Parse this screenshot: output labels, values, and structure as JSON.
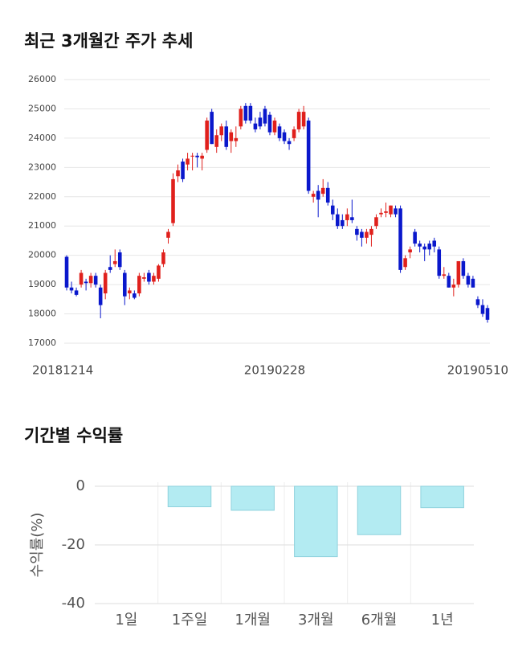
{
  "chart_data": [
    {
      "type": "candlestick",
      "title": "최근 3개월간 주가 추세",
      "up_color": "#e0201c",
      "down_color": "#0a18cc",
      "grid": true,
      "ylim": [
        17000,
        26000
      ],
      "yticks": [
        17000,
        18000,
        19000,
        20000,
        21000,
        22000,
        23000,
        24000,
        25000,
        26000
      ],
      "categories": [
        "20181214",
        null,
        null,
        null,
        null,
        null,
        null,
        null,
        null,
        null,
        null,
        null,
        null,
        null,
        null,
        null,
        null,
        null,
        null,
        null,
        null,
        null,
        null,
        null,
        null,
        null,
        null,
        null,
        null,
        null,
        null,
        null,
        null,
        null,
        null,
        null,
        null,
        null,
        null,
        null,
        null,
        null,
        null,
        "20190228",
        null,
        null,
        null,
        null,
        null,
        null,
        null,
        null,
        null,
        null,
        null,
        null,
        null,
        null,
        null,
        null,
        null,
        null,
        null,
        null,
        null,
        null,
        null,
        null,
        null,
        null,
        null,
        null,
        null,
        null,
        null,
        null,
        null,
        null,
        null,
        null,
        null,
        null,
        null,
        null,
        null,
        "20190510"
      ],
      "ohlc": [
        [
          19950,
          20000,
          18800,
          18900
        ],
        [
          18900,
          19100,
          18700,
          18800
        ],
        [
          18800,
          18900,
          18600,
          18650
        ],
        [
          19000,
          19500,
          18900,
          19400
        ],
        [
          19100,
          19200,
          18800,
          19050
        ],
        [
          19050,
          19400,
          18900,
          19300
        ],
        [
          19300,
          19400,
          18900,
          19000
        ],
        [
          18900,
          19000,
          17850,
          18300
        ],
        [
          18700,
          19500,
          18500,
          19400
        ],
        [
          19600,
          20000,
          19400,
          19500
        ],
        [
          19700,
          20200,
          19600,
          19800
        ],
        [
          20100,
          20200,
          19500,
          19600
        ],
        [
          19400,
          19500,
          18300,
          18600
        ],
        [
          18700,
          18900,
          18500,
          18800
        ],
        [
          18700,
          18800,
          18500,
          18550
        ],
        [
          18700,
          19400,
          18600,
          19300
        ],
        [
          19200,
          19400,
          19100,
          19250
        ],
        [
          19400,
          19500,
          19000,
          19100
        ],
        [
          19100,
          19400,
          19000,
          19300
        ],
        [
          19200,
          19700,
          19100,
          19650
        ],
        [
          19700,
          20200,
          19600,
          20100
        ],
        [
          20600,
          20900,
          20400,
          20800
        ],
        [
          21100,
          22800,
          21000,
          22600
        ],
        [
          22700,
          23100,
          22500,
          22900
        ],
        [
          23200,
          23300,
          22500,
          22600
        ],
        [
          23100,
          23500,
          22900,
          23300
        ],
        [
          23400,
          23500,
          22900,
          23400
        ],
        [
          23400,
          23500,
          23000,
          23350
        ],
        [
          23300,
          23500,
          22900,
          23400
        ],
        [
          23600,
          24700,
          23500,
          24600
        ],
        [
          24900,
          25000,
          23800,
          23800
        ],
        [
          23700,
          24300,
          23500,
          24100
        ],
        [
          24100,
          24500,
          23900,
          24400
        ],
        [
          24400,
          24600,
          23600,
          23700
        ],
        [
          23900,
          24300,
          23500,
          24200
        ],
        [
          23900,
          24400,
          23700,
          24000
        ],
        [
          24400,
          25100,
          24300,
          25000
        ],
        [
          25100,
          25200,
          24500,
          24600
        ],
        [
          25100,
          25200,
          24500,
          24600
        ],
        [
          24500,
          24700,
          24200,
          24300
        ],
        [
          24700,
          24900,
          24300,
          24400
        ],
        [
          25000,
          25100,
          24400,
          24500
        ],
        [
          24800,
          24900,
          24100,
          24200
        ],
        [
          24200,
          24700,
          24100,
          24600
        ],
        [
          24400,
          24500,
          23900,
          24000
        ],
        [
          24200,
          24300,
          23800,
          23900
        ],
        [
          23900,
          24000,
          23600,
          23800
        ],
        [
          24000,
          24400,
          23900,
          24300
        ],
        [
          24300,
          25000,
          24200,
          24900
        ],
        [
          24400,
          25100,
          24300,
          24900
        ],
        [
          24600,
          24700,
          22100,
          22200
        ],
        [
          22000,
          22200,
          21800,
          22100
        ],
        [
          22200,
          22400,
          21300,
          21900
        ],
        [
          22100,
          22600,
          22000,
          22300
        ],
        [
          22300,
          22500,
          21700,
          21800
        ],
        [
          21700,
          21900,
          21200,
          21400
        ],
        [
          21400,
          21600,
          20900,
          21000
        ],
        [
          21200,
          21400,
          20900,
          21000
        ],
        [
          21200,
          21600,
          21000,
          21400
        ],
        [
          21300,
          21900,
          21100,
          21200
        ],
        [
          20900,
          21000,
          20500,
          20700
        ],
        [
          20800,
          20900,
          20300,
          20600
        ],
        [
          20600,
          20900,
          20400,
          20800
        ],
        [
          20700,
          21000,
          20300,
          20900
        ],
        [
          21000,
          21400,
          20900,
          21300
        ],
        [
          21400,
          21600,
          21300,
          21450
        ],
        [
          21450,
          21800,
          21300,
          21500
        ],
        [
          21400,
          21700,
          21300,
          21700
        ],
        [
          21600,
          21700,
          21300,
          21400
        ],
        [
          21600,
          21700,
          19400,
          19500
        ],
        [
          19600,
          20000,
          19500,
          19900
        ],
        [
          20100,
          20300,
          19900,
          20200
        ],
        [
          20800,
          20900,
          20300,
          20400
        ],
        [
          20400,
          20500,
          20100,
          20300
        ],
        [
          20300,
          20400,
          19800,
          20200
        ],
        [
          20400,
          20500,
          20000,
          20200
        ],
        [
          20500,
          20600,
          20100,
          20300
        ],
        [
          20200,
          20300,
          19200,
          19300
        ],
        [
          19300,
          19600,
          19200,
          19350
        ],
        [
          19300,
          19400,
          18900,
          18900
        ],
        [
          18900,
          19200,
          18600,
          19000
        ],
        [
          19000,
          19800,
          18900,
          19800
        ],
        [
          19800,
          19900,
          19200,
          19300
        ],
        [
          19300,
          19400,
          18900,
          19000
        ],
        [
          19200,
          19300,
          18900,
          18900
        ],
        [
          18500,
          18600,
          18200,
          18300
        ],
        [
          18300,
          18500,
          17900,
          18000
        ],
        [
          18200,
          18300,
          17700,
          17800
        ]
      ]
    },
    {
      "type": "bar",
      "title": "기간별 수익률",
      "y_label": "수익률(%)",
      "color": "#b3ebf2",
      "grid": true,
      "categories": [
        "1일",
        "1주일",
        "1개월",
        "3개월",
        "6개월",
        "1년"
      ],
      "values": [
        0,
        -7,
        -8.2,
        -24,
        -16.5,
        -7.3
      ],
      "ylim": [
        -40,
        0
      ],
      "yticks": [
        0,
        -20,
        -40
      ]
    }
  ]
}
